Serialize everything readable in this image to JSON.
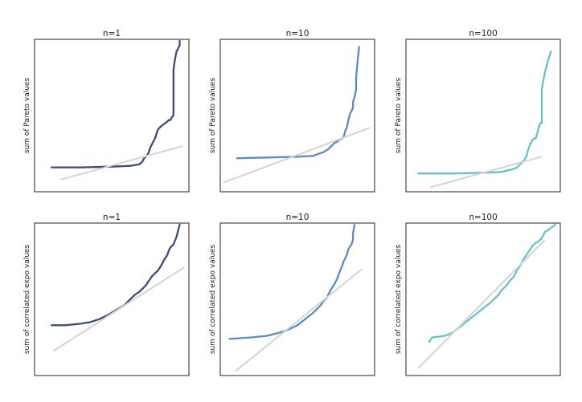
{
  "figure": {
    "colors": {
      "n1": "#3d4d78",
      "n10": "#5b8bc4",
      "n100": "#66c2c8",
      "reference": "#d3d3d3"
    }
  },
  "chart_data": [
    {
      "type": "line",
      "title": "n=1",
      "ylabel": "sum of Pareto values",
      "color": "#3d4d78",
      "xlim": [
        0,
        1
      ],
      "ylim": [
        0,
        1
      ],
      "series": [
        {
          "values_x": [
            0.11,
            0.3,
            0.5,
            0.62,
            0.68,
            0.7,
            0.71,
            0.73,
            0.74,
            0.75,
            0.76,
            0.78,
            0.79,
            0.8,
            0.82,
            0.86,
            0.87,
            0.88,
            0.89,
            0.9,
            0.9,
            0.91,
            0.92,
            0.94,
            0.94
          ],
          "values_y": [
            0.16,
            0.16,
            0.165,
            0.17,
            0.18,
            0.2,
            0.22,
            0.24,
            0.26,
            0.29,
            0.31,
            0.35,
            0.38,
            0.41,
            0.43,
            0.46,
            0.47,
            0.47,
            0.49,
            0.5,
            0.8,
            0.87,
            0.92,
            0.96,
            0.99
          ]
        },
        {
          "values_x": [
            0.17,
            0.96
          ],
          "values_y": [
            0.08,
            0.3
          ]
        }
      ]
    },
    {
      "type": "line",
      "title": "n=10",
      "ylabel": "sum of Pareto values",
      "color": "#5b8bc4",
      "xlim": [
        0,
        1
      ],
      "ylim": [
        0,
        1
      ],
      "series": [
        {
          "values_x": [
            0.11,
            0.3,
            0.5,
            0.6,
            0.64,
            0.67,
            0.7,
            0.72,
            0.74,
            0.76,
            0.77,
            0.79,
            0.8,
            0.81,
            0.82,
            0.83,
            0.84,
            0.85,
            0.86,
            0.86,
            0.87,
            0.88,
            0.88,
            0.89,
            0.9
          ],
          "values_y": [
            0.22,
            0.225,
            0.23,
            0.235,
            0.25,
            0.26,
            0.28,
            0.3,
            0.32,
            0.33,
            0.34,
            0.35,
            0.36,
            0.4,
            0.42,
            0.47,
            0.51,
            0.53,
            0.55,
            0.59,
            0.62,
            0.67,
            0.75,
            0.86,
            0.95
          ]
        },
        {
          "values_x": [
            0.02,
            0.97
          ],
          "values_y": [
            0.06,
            0.42
          ]
        }
      ]
    },
    {
      "type": "line",
      "title": "n=100",
      "ylabel": "sum of Pareto values",
      "color": "#66c2c8",
      "xlim": [
        0,
        1
      ],
      "ylim": [
        0,
        1
      ],
      "series": [
        {
          "values_x": [
            0.08,
            0.3,
            0.5,
            0.62,
            0.66,
            0.7,
            0.72,
            0.74,
            0.76,
            0.78,
            0.79,
            0.8,
            0.81,
            0.82,
            0.83,
            0.84,
            0.85,
            0.86,
            0.87,
            0.88,
            0.88,
            0.89,
            0.9,
            0.92,
            0.94
          ],
          "values_y": [
            0.12,
            0.12,
            0.125,
            0.13,
            0.14,
            0.15,
            0.16,
            0.18,
            0.2,
            0.23,
            0.27,
            0.3,
            0.32,
            0.34,
            0.35,
            0.35,
            0.38,
            0.42,
            0.45,
            0.45,
            0.67,
            0.73,
            0.78,
            0.86,
            0.92
          ]
        },
        {
          "values_x": [
            0.16,
            0.88
          ],
          "values_y": [
            0.03,
            0.23
          ]
        }
      ]
    },
    {
      "type": "line",
      "title": "n=1",
      "ylabel": "sum of correlated expo values",
      "color": "#3d4d78",
      "xlim": [
        0,
        1
      ],
      "ylim": [
        0,
        1
      ],
      "series": [
        {
          "values_x": [
            0.11,
            0.2,
            0.3,
            0.36,
            0.42,
            0.48,
            0.53,
            0.58,
            0.62,
            0.65,
            0.68,
            0.7,
            0.72,
            0.74,
            0.76,
            0.78,
            0.8,
            0.82,
            0.84,
            0.86,
            0.87,
            0.88,
            0.9,
            0.92,
            0.94
          ],
          "values_y": [
            0.33,
            0.33,
            0.34,
            0.35,
            0.37,
            0.4,
            0.43,
            0.46,
            0.5,
            0.53,
            0.55,
            0.57,
            0.59,
            0.62,
            0.65,
            0.67,
            0.69,
            0.72,
            0.76,
            0.79,
            0.82,
            0.84,
            0.86,
            0.91,
            0.99
          ]
        },
        {
          "values_x": [
            0.12,
            0.97
          ],
          "values_y": [
            0.16,
            0.71
          ]
        }
      ]
    },
    {
      "type": "line",
      "title": "n=10",
      "ylabel": "sum of correlated expo values",
      "color": "#5b8bc4",
      "xlim": [
        0,
        1
      ],
      "ylim": [
        0,
        1
      ],
      "series": [
        {
          "values_x": [
            0.06,
            0.2,
            0.3,
            0.38,
            0.44,
            0.5,
            0.55,
            0.6,
            0.63,
            0.65,
            0.67,
            0.69,
            0.7,
            0.72,
            0.74,
            0.76,
            0.77,
            0.79,
            0.8,
            0.82,
            0.83,
            0.85,
            0.86,
            0.86,
            0.87
          ],
          "values_y": [
            0.24,
            0.25,
            0.26,
            0.28,
            0.3,
            0.33,
            0.37,
            0.41,
            0.44,
            0.46,
            0.49,
            0.51,
            0.53,
            0.57,
            0.6,
            0.64,
            0.67,
            0.72,
            0.75,
            0.79,
            0.83,
            0.86,
            0.89,
            0.93,
            0.99
          ]
        },
        {
          "values_x": [
            0.1,
            0.92
          ],
          "values_y": [
            0.03,
            0.7
          ]
        }
      ]
    },
    {
      "type": "line",
      "title": "n=100",
      "ylabel": "sum of correlated expo values",
      "color": "#66c2c8",
      "xlim": [
        0,
        1
      ],
      "ylim": [
        0,
        1
      ],
      "series": [
        {
          "values_x": [
            0.15,
            0.17,
            0.25,
            0.3,
            0.35,
            0.4,
            0.45,
            0.5,
            0.55,
            0.6,
            0.62,
            0.65,
            0.68,
            0.7,
            0.72,
            0.74,
            0.76,
            0.78,
            0.8,
            0.82,
            0.84,
            0.86,
            0.88,
            0.9,
            0.97
          ],
          "values_y": [
            0.22,
            0.25,
            0.26,
            0.28,
            0.32,
            0.36,
            0.4,
            0.44,
            0.48,
            0.53,
            0.56,
            0.59,
            0.63,
            0.65,
            0.69,
            0.72,
            0.76,
            0.79,
            0.82,
            0.85,
            0.87,
            0.88,
            0.9,
            0.94,
            0.99
          ]
        },
        {
          "values_x": [
            0.08,
            0.9
          ],
          "values_y": [
            0.05,
            0.89
          ]
        }
      ]
    }
  ]
}
